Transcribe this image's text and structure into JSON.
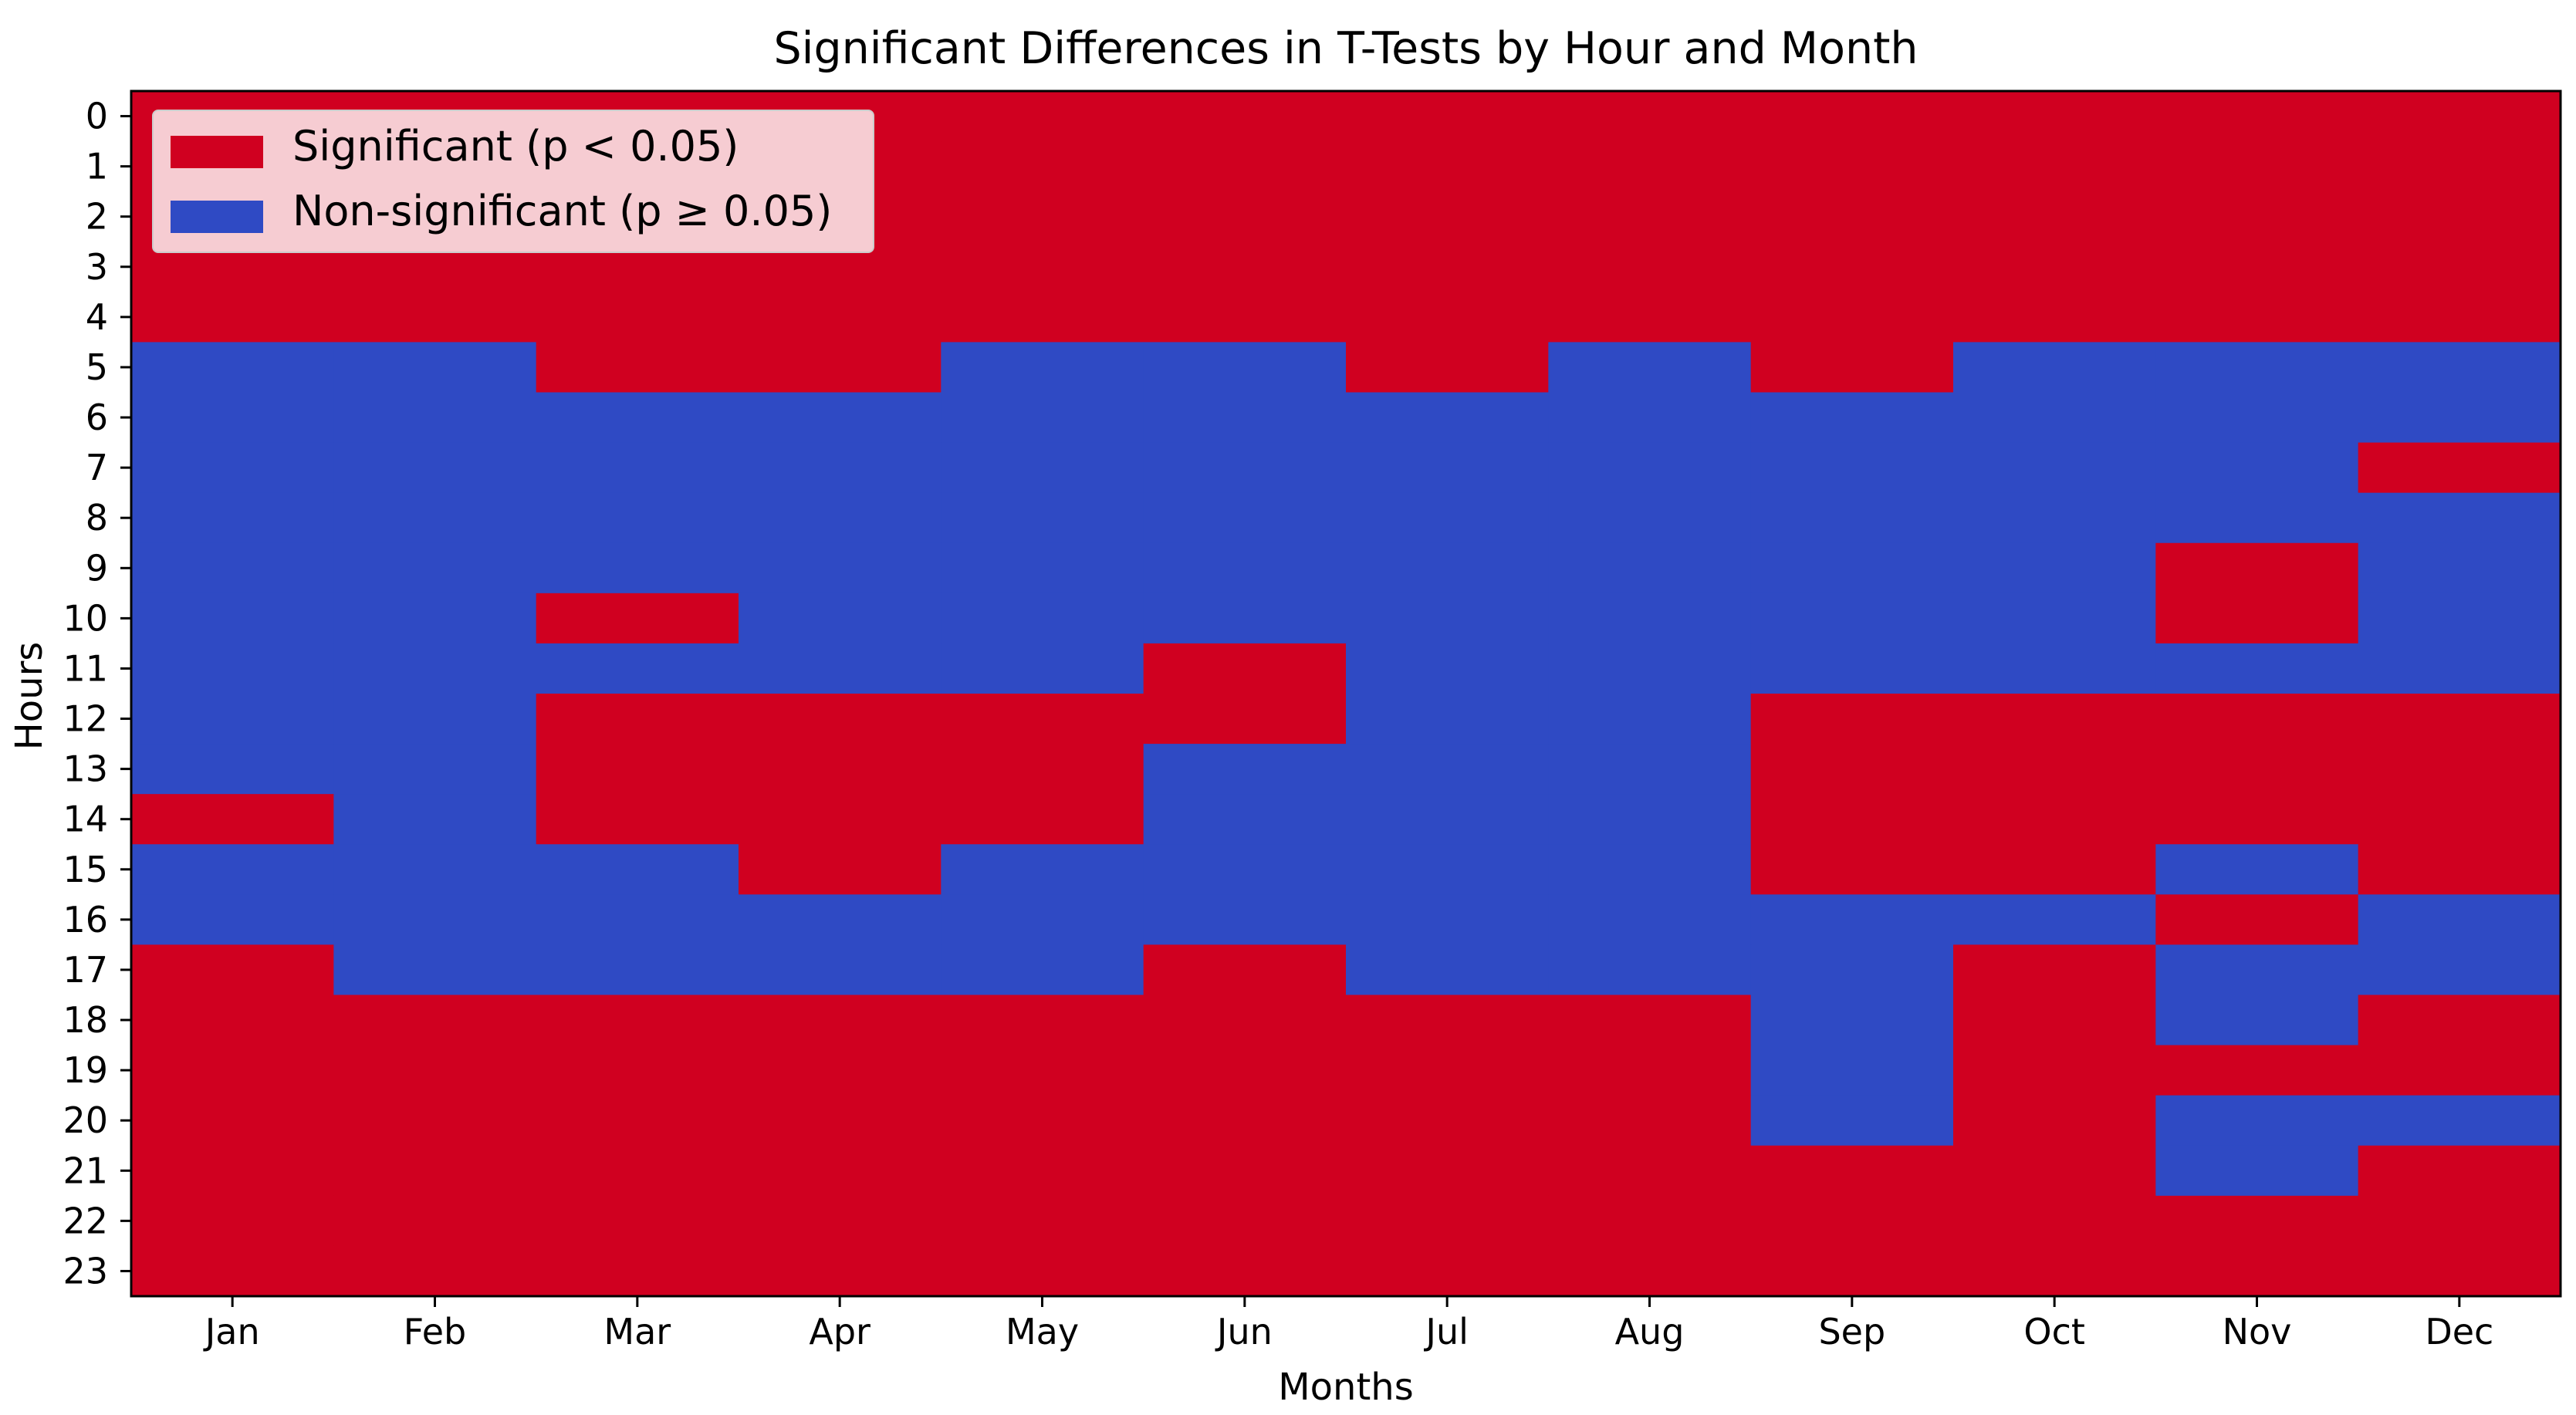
{
  "chart_data": {
    "type": "heatmap",
    "title": "Significant Differences in T-Tests by Hour and Month",
    "xlabel": "Months",
    "ylabel": "Hours",
    "x_categories": [
      "Jan",
      "Feb",
      "Mar",
      "Apr",
      "May",
      "Jun",
      "Jul",
      "Aug",
      "Sep",
      "Oct",
      "Nov",
      "Dec"
    ],
    "y_categories": [
      "0",
      "1",
      "2",
      "3",
      "4",
      "5",
      "6",
      "7",
      "8",
      "9",
      "10",
      "11",
      "12",
      "13",
      "14",
      "15",
      "16",
      "17",
      "18",
      "19",
      "20",
      "21",
      "22",
      "23"
    ],
    "value_legend": {
      "1": "Significant (p < 0.05)",
      "0": "Non-significant (p ≥ 0.05)"
    },
    "colors": {
      "significant": "#d00020",
      "non_significant": "#2f4ac4"
    },
    "legend": {
      "position": "top-left",
      "entries": [
        {
          "label": "Significant (p < 0.05)",
          "color": "#d00020"
        },
        {
          "label": "Non-significant (p ≥ 0.05)",
          "color": "#2f4ac4"
        }
      ]
    },
    "values": [
      [
        1,
        1,
        1,
        1,
        1,
        1,
        1,
        1,
        1,
        1,
        1,
        1
      ],
      [
        1,
        1,
        1,
        1,
        1,
        1,
        1,
        1,
        1,
        1,
        1,
        1
      ],
      [
        1,
        1,
        1,
        1,
        1,
        1,
        1,
        1,
        1,
        1,
        1,
        1
      ],
      [
        1,
        1,
        1,
        1,
        1,
        1,
        1,
        1,
        1,
        1,
        1,
        1
      ],
      [
        1,
        1,
        1,
        1,
        1,
        1,
        1,
        1,
        1,
        1,
        1,
        1
      ],
      [
        0,
        0,
        1,
        1,
        0,
        0,
        1,
        0,
        1,
        0,
        0,
        0
      ],
      [
        0,
        0,
        0,
        0,
        0,
        0,
        0,
        0,
        0,
        0,
        0,
        0
      ],
      [
        0,
        0,
        0,
        0,
        0,
        0,
        0,
        0,
        0,
        0,
        0,
        1
      ],
      [
        0,
        0,
        0,
        0,
        0,
        0,
        0,
        0,
        0,
        0,
        0,
        0
      ],
      [
        0,
        0,
        0,
        0,
        0,
        0,
        0,
        0,
        0,
        0,
        1,
        0
      ],
      [
        0,
        0,
        1,
        0,
        0,
        0,
        0,
        0,
        0,
        0,
        1,
        0
      ],
      [
        0,
        0,
        0,
        0,
        0,
        1,
        0,
        0,
        0,
        0,
        0,
        0
      ],
      [
        0,
        0,
        1,
        1,
        1,
        1,
        0,
        0,
        1,
        1,
        1,
        1
      ],
      [
        0,
        0,
        1,
        1,
        1,
        0,
        0,
        0,
        1,
        1,
        1,
        1
      ],
      [
        1,
        0,
        1,
        1,
        1,
        0,
        0,
        0,
        1,
        1,
        1,
        1
      ],
      [
        0,
        0,
        0,
        1,
        0,
        0,
        0,
        0,
        1,
        1,
        0,
        1
      ],
      [
        0,
        0,
        0,
        0,
        0,
        0,
        0,
        0,
        0,
        0,
        1,
        0
      ],
      [
        1,
        0,
        0,
        0,
        0,
        1,
        0,
        0,
        0,
        1,
        0,
        0
      ],
      [
        1,
        1,
        1,
        1,
        1,
        1,
        1,
        1,
        0,
        1,
        0,
        1
      ],
      [
        1,
        1,
        1,
        1,
        1,
        1,
        1,
        1,
        0,
        1,
        1,
        1
      ],
      [
        1,
        1,
        1,
        1,
        1,
        1,
        1,
        1,
        0,
        1,
        0,
        0
      ],
      [
        1,
        1,
        1,
        1,
        1,
        1,
        1,
        1,
        1,
        1,
        0,
        1
      ],
      [
        1,
        1,
        1,
        1,
        1,
        1,
        1,
        1,
        1,
        1,
        1,
        1
      ],
      [
        1,
        1,
        1,
        1,
        1,
        1,
        1,
        1,
        1,
        1,
        1,
        1
      ]
    ]
  }
}
